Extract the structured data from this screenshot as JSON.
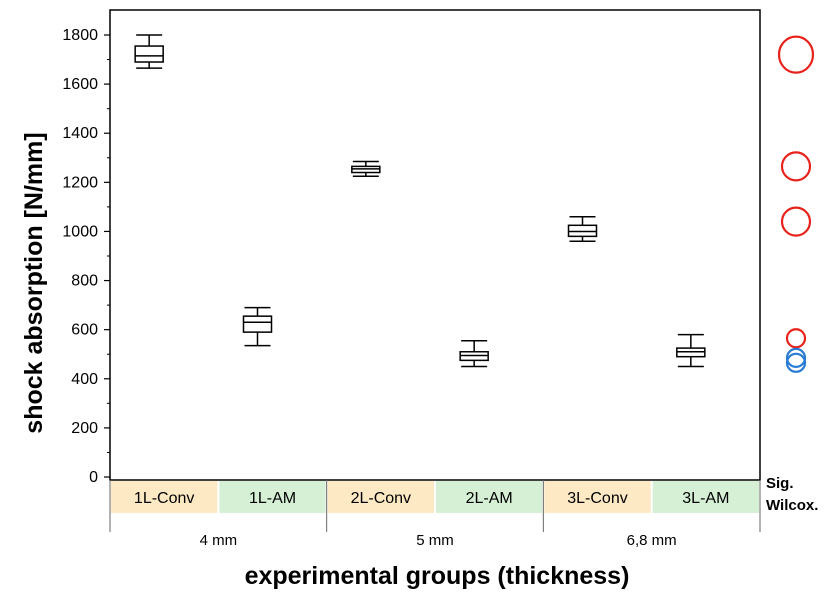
{
  "chart_data": {
    "type": "box",
    "ylabel": "shock absorption [N/mm]",
    "xlabel": "experimental groups (thickness)",
    "ylim": [
      0,
      1900
    ],
    "yticks": [
      0,
      200,
      400,
      600,
      800,
      1000,
      1200,
      1400,
      1600,
      1800
    ],
    "yticks_labels": [
      "0",
      "200",
      "400",
      "600",
      "800",
      "1000",
      "1200",
      "1400",
      "1600",
      "1800"
    ],
    "groups": [
      {
        "label": "1L-Conv",
        "type": "Conv",
        "min": 1665,
        "q1": 1690,
        "median": 1715,
        "q3": 1755,
        "max": 1800
      },
      {
        "label": "1L-AM",
        "type": "AM",
        "min": 535,
        "q1": 590,
        "median": 630,
        "q3": 655,
        "max": 690
      },
      {
        "label": "2L-Conv",
        "type": "Conv",
        "min": 1225,
        "q1": 1240,
        "median": 1255,
        "q3": 1265,
        "max": 1285
      },
      {
        "label": "2L-AM",
        "type": "AM",
        "min": 450,
        "q1": 475,
        "median": 495,
        "q3": 510,
        "max": 555
      },
      {
        "label": "3L-Conv",
        "type": "Conv",
        "min": 960,
        "q1": 980,
        "median": 1000,
        "q3": 1025,
        "max": 1060
      },
      {
        "label": "3L-AM",
        "type": "AM",
        "min": 450,
        "q1": 490,
        "median": 510,
        "q3": 525,
        "max": 580
      }
    ],
    "thickness_groups": [
      "4 mm",
      "5 mm",
      "6,8 mm"
    ],
    "sig_label_line1": "Sig.",
    "sig_label_line2": "Wilcox.",
    "sig_markers": [
      {
        "value": 1720,
        "size": "large",
        "color": "#e8221b"
      },
      {
        "value": 1265,
        "size": "medium",
        "color": "#e8221b"
      },
      {
        "value": 1040,
        "size": "medium",
        "color": "#e8221b"
      },
      {
        "value": 565,
        "size": "small",
        "color": "#e8221b"
      },
      {
        "value": 485,
        "size": "small",
        "color": "#2a7bd4"
      },
      {
        "value": 465,
        "size": "small",
        "color": "#2a7bd4"
      }
    ],
    "colors": {
      "conv_band": "#fde9c4",
      "am_band": "#d6f0d6",
      "box_stroke": "#000000"
    }
  }
}
